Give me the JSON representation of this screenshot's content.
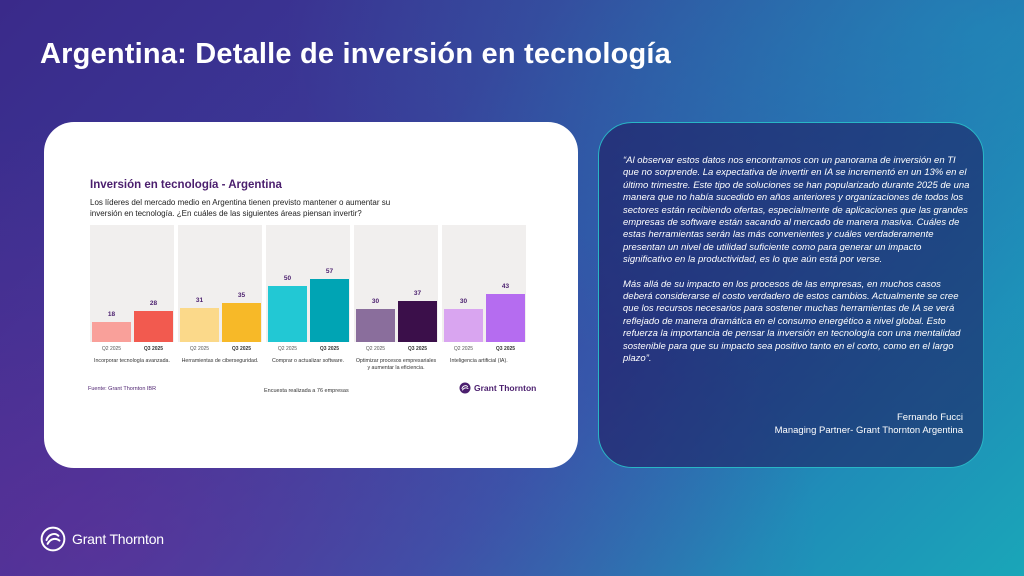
{
  "page_title": "Argentina: Detalle de inversión en tecnología",
  "card": {
    "title": "Inversión en tecnología - Argentina",
    "subtitle": "Los líderes del mercado medio en Argentina tienen previsto mantener o aumentar su inversión en tecnología. ¿En cuáles de las siguientes áreas piensan invertir?",
    "source": "Fuente: Grant Thornton IBR",
    "note": "Encuesta realizada a 76 empresas",
    "logo_text": "Grant Thornton"
  },
  "chart_data": {
    "type": "bar",
    "title": "Inversión en tecnología - Argentina",
    "categories": [
      "Incorporar tecnología avanzada.",
      "Herramientas de ciberseguridad.",
      "Comprar o actualizar software.",
      "Optimizar procesos empresariales y aumentar la eficiencia.",
      "Inteligencia artificial (IA)."
    ],
    "series": [
      {
        "name": "Q2 2025",
        "values": [
          18,
          31,
          50,
          30,
          30
        ],
        "colors": [
          "#f9a09a",
          "#fbd98a",
          "#22c8d4",
          "#8a6e9c",
          "#d9a5f0"
        ]
      },
      {
        "name": "Q3 2025",
        "values": [
          28,
          35,
          57,
          37,
          43
        ],
        "colors": [
          "#f25a4f",
          "#f7b928",
          "#00a4b4",
          "#3b0f4a",
          "#b56cf0"
        ]
      }
    ],
    "ylim": [
      0,
      100
    ],
    "grid": false
  },
  "quote": {
    "paragraph1": "“Al observar estos datos nos encontramos con un panorama de inversión en TI que no sorprende. La expectativa de invertir en IA se incrementó en un 13% en el último trimestre. Este tipo de soluciones se han popularizado durante 2025 de una manera que no había sucedido en años anteriores y organizaciones de todos los sectores están recibiendo ofertas, especialmente de aplicaciones que las grandes empresas de software están sacando al mercado de manera masiva. Cuáles de estas herramientas serán las más convenientes y cuáles verdaderamente presentan un nivel de utilidad suficiente como para generar un impacto significativo en la productividad, es lo que aún está por verse.",
    "paragraph2": "Más allá de su impacto en los procesos de las empresas, en muchos casos deberá considerarse el costo verdadero de estos cambios. Actualmente se cree que los recursos necesarios para sostener muchas herramientas de IA  se verá reflejado de manera dramática en el consumo energético a nivel global. Esto refuerza la importancia de pensar la inversión en tecnología con una mentalidad sostenible para que su impacto sea positivo tanto en el corto, como en el largo plazo”.",
    "author": "Fernando Fucci",
    "role": "Managing Partner- Grant Thornton Argentina"
  },
  "footer": {
    "logo_text": "Grant Thornton"
  },
  "colors": {
    "brand_purple": "#4b1f6e",
    "accent_teal": "#29b6c6"
  },
  "icons": [
    "grant-thornton-logo-icon"
  ]
}
